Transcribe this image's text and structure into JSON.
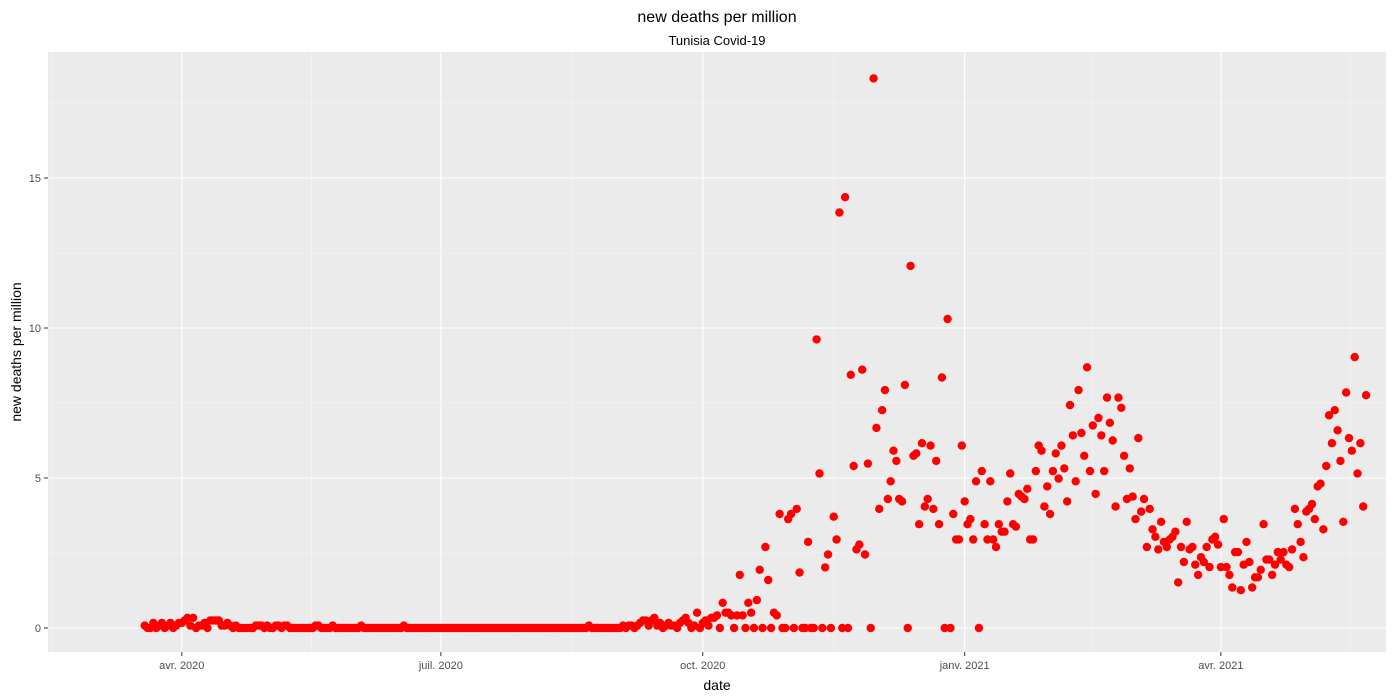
{
  "chart_data": {
    "type": "scatter",
    "title": "new deaths per million",
    "subtitle": "Tunisia Covid-19",
    "xlabel": "date",
    "ylabel": "new deaths per million",
    "x_ticks": [
      "avr. 2020",
      "juil. 2020",
      "oct. 2020",
      "janv. 2021",
      "avr. 2021"
    ],
    "x_tick_dates": [
      "2020-04-01",
      "2020-07-01",
      "2020-10-01",
      "2021-01-01",
      "2021-04-01"
    ],
    "xlim": [
      "2020-02-14",
      "2021-05-29"
    ],
    "y_ticks": [
      "0",
      "5",
      "10",
      "15"
    ],
    "ylim": [
      -0.8,
      19.2
    ],
    "grid": true,
    "series": [
      {
        "color": "#ff0000",
        "start_date": "2020-03-19",
        "values": [
          0.08,
          0.0,
          0.0,
          0.17,
          0.0,
          0.08,
          0.17,
          0.0,
          0.08,
          0.17,
          0.0,
          0.08,
          0.17,
          0.17,
          0.25,
          0.34,
          0.08,
          0.34,
          0.0,
          0.08,
          0.08,
          0.17,
          0.0,
          0.25,
          0.25,
          0.25,
          0.25,
          0.08,
          0.08,
          0.17,
          0.08,
          0.0,
          0.08,
          0.0,
          0.0,
          0.0,
          0.0,
          0.0,
          0.0,
          0.08,
          0.08,
          0.08,
          0.0,
          0.08,
          0.0,
          0.0,
          0.08,
          0.08,
          0.0,
          0.08,
          0.08,
          0.0,
          0.0,
          0.0,
          0.0,
          0.0,
          0.0,
          0.0,
          0.0,
          0.0,
          0.08,
          0.08,
          0.0,
          0.0,
          0.0,
          0.0,
          0.08,
          0.0,
          0.0,
          0.0,
          0.0,
          0.0,
          0.0,
          0.0,
          0.0,
          0.0,
          0.08,
          0.0,
          0.0,
          0.0,
          0.0,
          0.0,
          0.0,
          0.0,
          0.0,
          0.0,
          0.0,
          0.0,
          0.0,
          0.0,
          0.0,
          0.08,
          0.0,
          0.0,
          0.0,
          0.0,
          0.0,
          0.0,
          0.0,
          0.0,
          0.0,
          0.0,
          0.0,
          0.0,
          0.0,
          0.0,
          0.0,
          0.0,
          0.0,
          0.0,
          0.0,
          0.0,
          0.0,
          0.0,
          0.0,
          0.0,
          0.0,
          0.0,
          0.0,
          0.0,
          0.0,
          0.0,
          0.0,
          0.0,
          0.0,
          0.0,
          0.0,
          0.0,
          0.0,
          0.0,
          0.0,
          0.0,
          0.0,
          0.0,
          0.0,
          0.0,
          0.0,
          0.0,
          0.0,
          0.0,
          0.0,
          0.0,
          0.0,
          0.0,
          0.0,
          0.0,
          0.0,
          0.0,
          0.0,
          0.0,
          0.0,
          0.0,
          0.0,
          0.0,
          0.0,
          0.0,
          0.08,
          0.0,
          0.0,
          0.0,
          0.0,
          0.0,
          0.0,
          0.0,
          0.0,
          0.0,
          0.0,
          0.0,
          0.08,
          0.0,
          0.08,
          0.08,
          0.0,
          0.08,
          0.17,
          0.25,
          0.25,
          0.08,
          0.25,
          0.34,
          0.08,
          0.17,
          0.0,
          0.08,
          0.17,
          0.08,
          0.08,
          0.0,
          0.17,
          0.25,
          0.34,
          0.17,
          0.0,
          0.08,
          0.51,
          0.0,
          0.17,
          0.25,
          0.08,
          0.34,
          0.34,
          0.42,
          0.0,
          0.84,
          0.51,
          0.51,
          0.42,
          0.0,
          0.42,
          1.77,
          0.42,
          0.0,
          0.84,
          0.51,
          0.0,
          0.93,
          1.94,
          0.0,
          2.7,
          1.6,
          0.0,
          0.51,
          0.42,
          3.8,
          0.0,
          0.0,
          3.63,
          3.8,
          0.0,
          3.97,
          1.85,
          0.0,
          0.0,
          2.87,
          0.0,
          0.0,
          9.62,
          5.15,
          0.0,
          2.02,
          2.45,
          0.0,
          3.71,
          2.95,
          13.85,
          0.0,
          14.36,
          0.0,
          8.44,
          5.4,
          2.62,
          2.78,
          8.61,
          2.45,
          5.48,
          0.0,
          18.32,
          6.67,
          3.97,
          7.26,
          7.93,
          4.3,
          4.89,
          5.91,
          5.57,
          4.3,
          4.22,
          8.1,
          0.0,
          12.07,
          5.74,
          5.82,
          3.46,
          6.16,
          4.05,
          4.3,
          6.08,
          3.97,
          5.57,
          3.46,
          8.35,
          0.0,
          10.3,
          0.0,
          3.8,
          2.95,
          2.95,
          6.08,
          4.22,
          3.46,
          3.63,
          2.95,
          4.89,
          0.0,
          5.23,
          3.46,
          2.95,
          4.89,
          2.95,
          2.7,
          3.46,
          3.21,
          3.21,
          4.22,
          5.15,
          3.46,
          3.38,
          4.47,
          4.38,
          4.3,
          4.64,
          2.95,
          2.95,
          5.23,
          6.08,
          5.91,
          4.05,
          4.72,
          3.8,
          5.23,
          5.82,
          4.98,
          6.08,
          5.32,
          4.22,
          7.43,
          6.42,
          4.89,
          7.93,
          6.5,
          5.74,
          8.69,
          5.23,
          6.75,
          4.47,
          7.0,
          6.42,
          5.23,
          7.68,
          6.84,
          6.25,
          4.05,
          7.68,
          7.34,
          5.74,
          4.3,
          5.32,
          4.38,
          3.63,
          6.33,
          3.88,
          4.3,
          2.7,
          3.97,
          3.29,
          3.04,
          2.62,
          3.54,
          2.87,
          2.7,
          2.95,
          3.04,
          3.21,
          1.52,
          2.7,
          2.2,
          3.54,
          2.62,
          2.7,
          2.11,
          1.77,
          2.36,
          2.2,
          2.7,
          2.03,
          2.95,
          3.04,
          2.78,
          2.03,
          3.63,
          2.03,
          1.77,
          1.35,
          2.53,
          2.53,
          1.26,
          2.11,
          2.87,
          2.2,
          1.35,
          1.69,
          1.69,
          1.94,
          3.46,
          2.28,
          2.28,
          1.77,
          2.11,
          2.53,
          2.28,
          2.53,
          2.11,
          2.03,
          2.62,
          3.97,
          3.46,
          2.87,
          2.36,
          3.88,
          3.97,
          4.13,
          3.63,
          4.72,
          4.81,
          3.29,
          5.4,
          7.09,
          6.16,
          7.26,
          6.59,
          5.57,
          3.54,
          7.85,
          6.33,
          5.91,
          9.03,
          5.15,
          6.16,
          4.05,
          7.76
        ]
      }
    ]
  }
}
